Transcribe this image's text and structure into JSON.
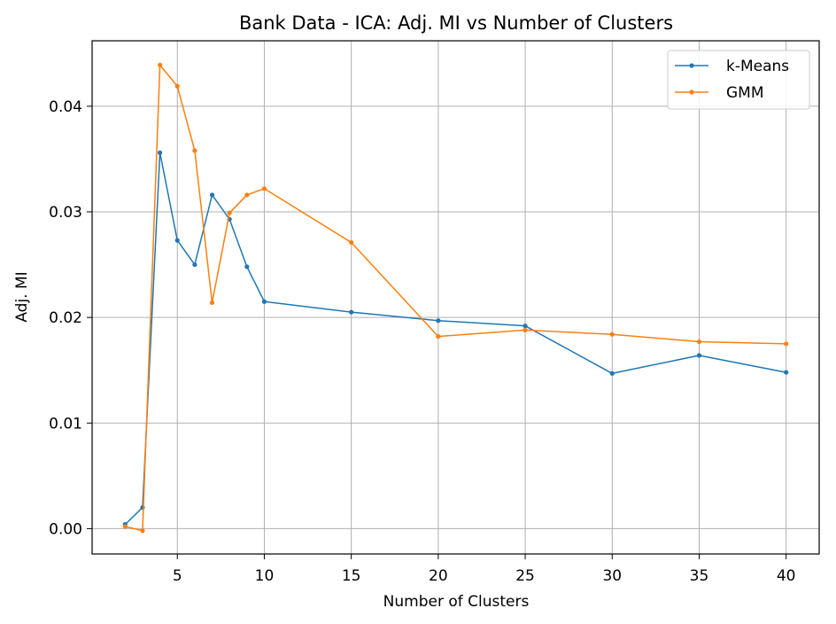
{
  "chart_data": {
    "type": "line",
    "title": "Bank Data - ICA: Adj. MI vs Number of Clusters",
    "xlabel": "Number of Clusters",
    "ylabel": "Adj. MI",
    "xlim": [
      0.1,
      41.9
    ],
    "ylim": [
      -0.0024,
      0.0462
    ],
    "xticks": [
      5,
      10,
      15,
      20,
      25,
      30,
      35,
      40
    ],
    "xtick_labels": [
      "5",
      "10",
      "15",
      "20",
      "25",
      "30",
      "35",
      "40"
    ],
    "yticks": [
      0.0,
      0.01,
      0.02,
      0.03,
      0.04
    ],
    "ytick_labels": [
      "0.00",
      "0.01",
      "0.02",
      "0.03",
      "0.04"
    ],
    "grid": true,
    "legend_position": "top-right",
    "x": [
      2,
      3,
      4,
      5,
      6,
      7,
      8,
      9,
      10,
      15,
      20,
      25,
      30,
      35,
      40
    ],
    "series": [
      {
        "name": "k-Means",
        "color": "#1f77b4",
        "values": [
          0.0004,
          0.002,
          0.0356,
          0.0273,
          0.025,
          0.0316,
          0.0293,
          0.0248,
          0.0215,
          0.0205,
          0.0197,
          0.0192,
          0.0147,
          0.0164,
          0.0148
        ]
      },
      {
        "name": "GMM",
        "color": "#ff7f0e",
        "values": [
          0.0002,
          -0.0002,
          0.0439,
          0.0419,
          0.0358,
          0.0214,
          0.0299,
          0.0316,
          0.0322,
          0.0271,
          0.0182,
          0.0188,
          0.0184,
          0.0177,
          0.0175
        ]
      }
    ]
  }
}
